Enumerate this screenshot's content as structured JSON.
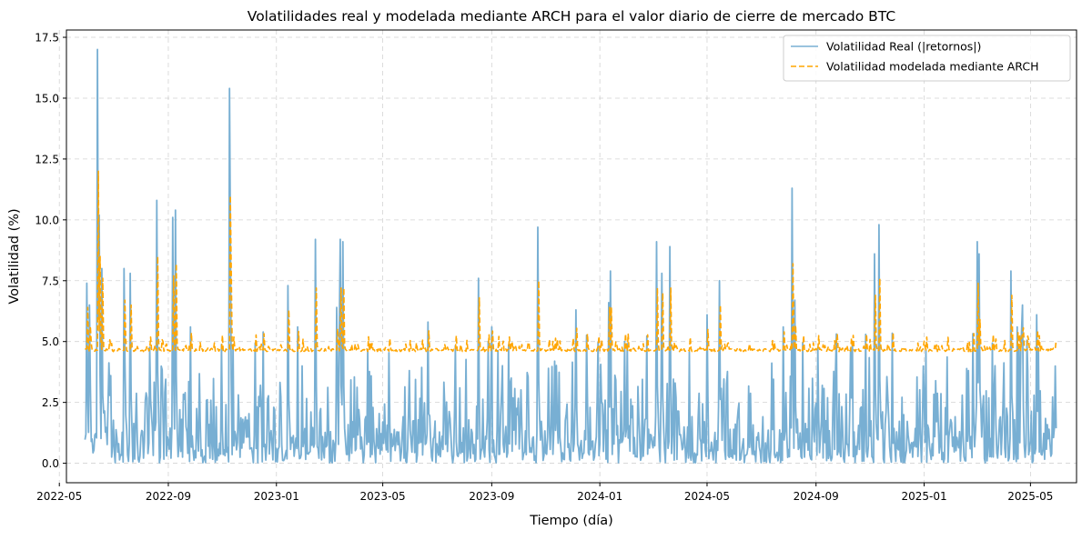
{
  "chart_data": {
    "type": "line",
    "title": "Volatilidades real y modelada mediante ARCH para el valor diario de cierre de mercado BTC",
    "xlabel": "Tiempo (día)",
    "ylabel": "Volatilidad (%)",
    "x_range": [
      "2022-05-09",
      "2025-06-22"
    ],
    "data_range": [
      "2022-05-30",
      "2025-05-30"
    ],
    "ylim": [
      -0.8,
      17.8
    ],
    "x_ticks": [
      {
        "date": "2022-05-01",
        "label": "2022-05"
      },
      {
        "date": "2022-09-01",
        "label": "2022-09"
      },
      {
        "date": "2023-01-01",
        "label": "2023-01"
      },
      {
        "date": "2023-05-01",
        "label": "2023-05"
      },
      {
        "date": "2023-09-01",
        "label": "2023-09"
      },
      {
        "date": "2024-01-01",
        "label": "2024-01"
      },
      {
        "date": "2024-05-01",
        "label": "2024-05"
      },
      {
        "date": "2024-09-01",
        "label": "2024-09"
      },
      {
        "date": "2025-01-01",
        "label": "2025-01"
      },
      {
        "date": "2025-05-01",
        "label": "2025-05"
      }
    ],
    "y_ticks": [
      {
        "value": 0.0,
        "label": "0.0"
      },
      {
        "value": 2.5,
        "label": "2.5"
      },
      {
        "value": 5.0,
        "label": "5.0"
      },
      {
        "value": 7.5,
        "label": "7.5"
      },
      {
        "value": 10.0,
        "label": "10.0"
      },
      {
        "value": 12.5,
        "label": "12.5"
      },
      {
        "value": 15.0,
        "label": "15.0"
      },
      {
        "value": 17.5,
        "label": "17.5"
      }
    ],
    "grid": true,
    "legend_position": "top-right",
    "series": [
      {
        "name": "Volatilidad Real (|retornos|)",
        "color": "#78afd3",
        "style": "solid",
        "baseline": 1.3,
        "spikes": [
          {
            "date": "2022-06-01",
            "value": 7.4
          },
          {
            "date": "2022-06-04",
            "value": 6.5
          },
          {
            "date": "2022-06-13",
            "value": 17.0
          },
          {
            "date": "2022-06-15",
            "value": 10.2
          },
          {
            "date": "2022-06-18",
            "value": 8.0
          },
          {
            "date": "2022-07-13",
            "value": 8.0
          },
          {
            "date": "2022-07-20",
            "value": 7.8
          },
          {
            "date": "2022-08-19",
            "value": 10.8
          },
          {
            "date": "2022-09-06",
            "value": 10.1
          },
          {
            "date": "2022-09-09",
            "value": 10.4
          },
          {
            "date": "2022-11-09",
            "value": 15.4
          },
          {
            "date": "2022-11-10",
            "value": 10.0
          },
          {
            "date": "2023-01-14",
            "value": 7.3
          },
          {
            "date": "2023-02-14",
            "value": 9.2
          },
          {
            "date": "2023-03-10",
            "value": 6.4
          },
          {
            "date": "2023-03-14",
            "value": 9.2
          },
          {
            "date": "2023-03-17",
            "value": 9.1
          },
          {
            "date": "2023-06-21",
            "value": 5.8
          },
          {
            "date": "2023-08-17",
            "value": 7.6
          },
          {
            "date": "2023-10-23",
            "value": 9.7
          },
          {
            "date": "2023-12-05",
            "value": 6.3
          },
          {
            "date": "2024-01-11",
            "value": 6.6
          },
          {
            "date": "2024-01-13",
            "value": 7.9
          },
          {
            "date": "2024-03-05",
            "value": 9.1
          },
          {
            "date": "2024-03-11",
            "value": 7.8
          },
          {
            "date": "2024-03-20",
            "value": 8.9
          },
          {
            "date": "2024-05-01",
            "value": 6.1
          },
          {
            "date": "2024-05-15",
            "value": 7.5
          },
          {
            "date": "2024-08-05",
            "value": 11.3
          },
          {
            "date": "2024-08-08",
            "value": 6.7
          },
          {
            "date": "2024-11-06",
            "value": 8.6
          },
          {
            "date": "2024-11-11",
            "value": 9.8
          },
          {
            "date": "2025-03-02",
            "value": 9.1
          },
          {
            "date": "2025-03-04",
            "value": 8.6
          },
          {
            "date": "2025-04-09",
            "value": 7.9
          },
          {
            "date": "2025-04-22",
            "value": 6.5
          },
          {
            "date": "2025-05-08",
            "value": 6.1
          }
        ]
      },
      {
        "name": "Volatilidad modelada mediante ARCH",
        "color": "#ffa500",
        "style": "dashed",
        "baseline": 4.65,
        "spikes": [
          {
            "date": "2022-06-02",
            "value": 6.4
          },
          {
            "date": "2022-06-14",
            "value": 12.0
          },
          {
            "date": "2022-06-16",
            "value": 8.5
          },
          {
            "date": "2022-06-19",
            "value": 7.6
          },
          {
            "date": "2022-07-14",
            "value": 6.7
          },
          {
            "date": "2022-07-21",
            "value": 6.5
          },
          {
            "date": "2022-08-20",
            "value": 8.5
          },
          {
            "date": "2022-09-07",
            "value": 7.7
          },
          {
            "date": "2022-09-10",
            "value": 8.2
          },
          {
            "date": "2022-11-10",
            "value": 11.0
          },
          {
            "date": "2022-11-11",
            "value": 8.0
          },
          {
            "date": "2023-01-15",
            "value": 6.3
          },
          {
            "date": "2023-02-15",
            "value": 7.2
          },
          {
            "date": "2023-03-15",
            "value": 7.2
          },
          {
            "date": "2023-03-18",
            "value": 7.2
          },
          {
            "date": "2023-08-18",
            "value": 6.8
          },
          {
            "date": "2023-10-24",
            "value": 7.5
          },
          {
            "date": "2024-01-12",
            "value": 6.4
          },
          {
            "date": "2024-01-14",
            "value": 6.4
          },
          {
            "date": "2024-03-06",
            "value": 7.2
          },
          {
            "date": "2024-03-12",
            "value": 7.0
          },
          {
            "date": "2024-03-21",
            "value": 7.2
          },
          {
            "date": "2024-05-16",
            "value": 6.5
          },
          {
            "date": "2024-08-06",
            "value": 8.2
          },
          {
            "date": "2024-11-07",
            "value": 6.9
          },
          {
            "date": "2024-11-12",
            "value": 7.6
          },
          {
            "date": "2025-03-03",
            "value": 7.4
          },
          {
            "date": "2025-04-10",
            "value": 6.9
          }
        ]
      }
    ]
  }
}
